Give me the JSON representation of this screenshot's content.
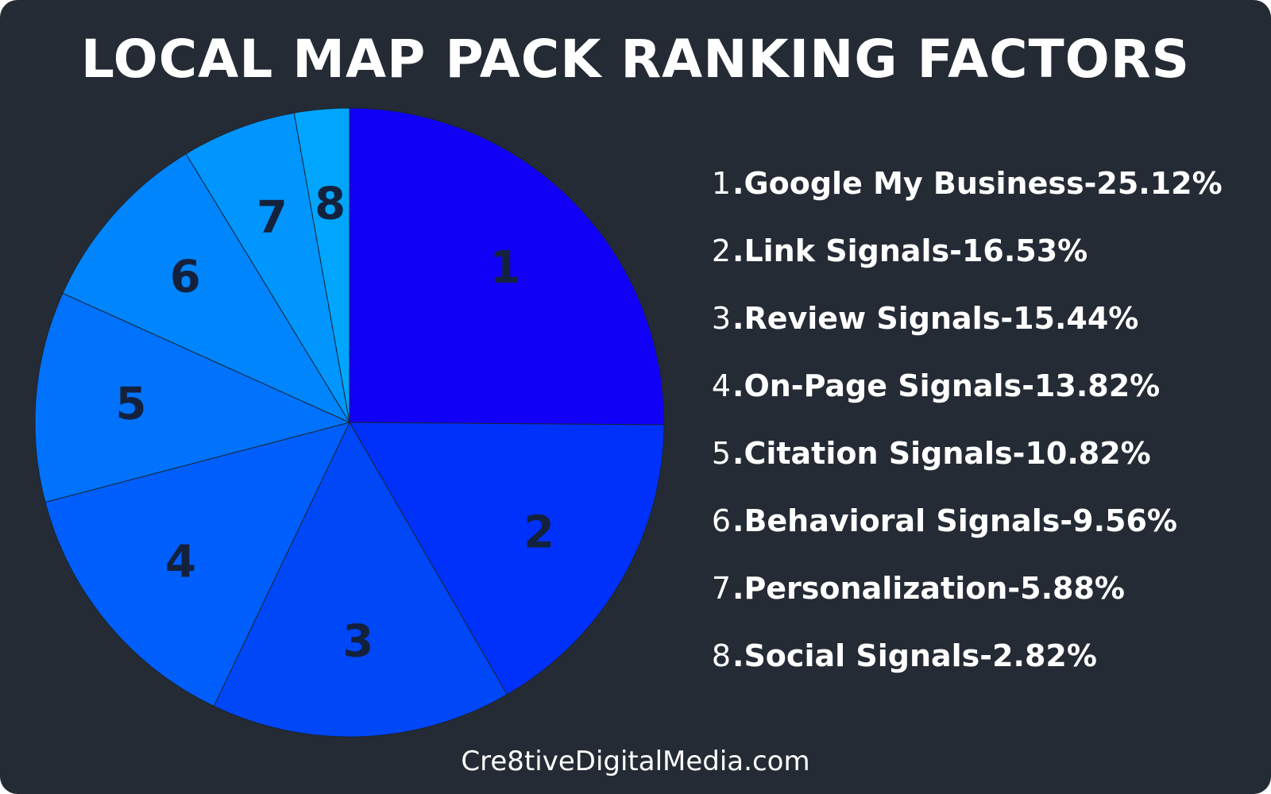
{
  "title": "LOCAL MAP PACK RANKING FACTORS",
  "footer": "Cre8tiveDigitalMedia.com",
  "chart_data": {
    "type": "pie",
    "title": "LOCAL MAP PACK RANKING FACTORS",
    "legend_position": "right",
    "slices": [
      {
        "number": "1",
        "label": "Google My Business",
        "value": 25.12,
        "value_text": "25.12%",
        "color": "#1000f5"
      },
      {
        "number": "2",
        "label": "Link Signals",
        "value": 16.53,
        "value_text": "16.53%",
        "color": "#0031fb"
      },
      {
        "number": "3",
        "label": "Review Signals",
        "value": 15.44,
        "value_text": "15.44%",
        "color": "#0047f8"
      },
      {
        "number": "4",
        "label": "On-Page Signals",
        "value": 13.82,
        "value_text": "13.82%",
        "color": "#005ffc"
      },
      {
        "number": "5",
        "label": "Citation Signals",
        "value": 10.82,
        "value_text": "10.82%",
        "color": "#0072fb"
      },
      {
        "number": "6",
        "label": "Behavioral Signals",
        "value": 9.56,
        "value_text": "9.56%",
        "color": "#0085fc"
      },
      {
        "number": "7",
        "label": "Personalization",
        "value": 5.88,
        "value_text": "5.88%",
        "color": "#0096fd"
      },
      {
        "number": "8",
        "label": "Social Signals",
        "value": 2.82,
        "value_text": "2.82%",
        "color": "#00a6fe"
      }
    ]
  }
}
